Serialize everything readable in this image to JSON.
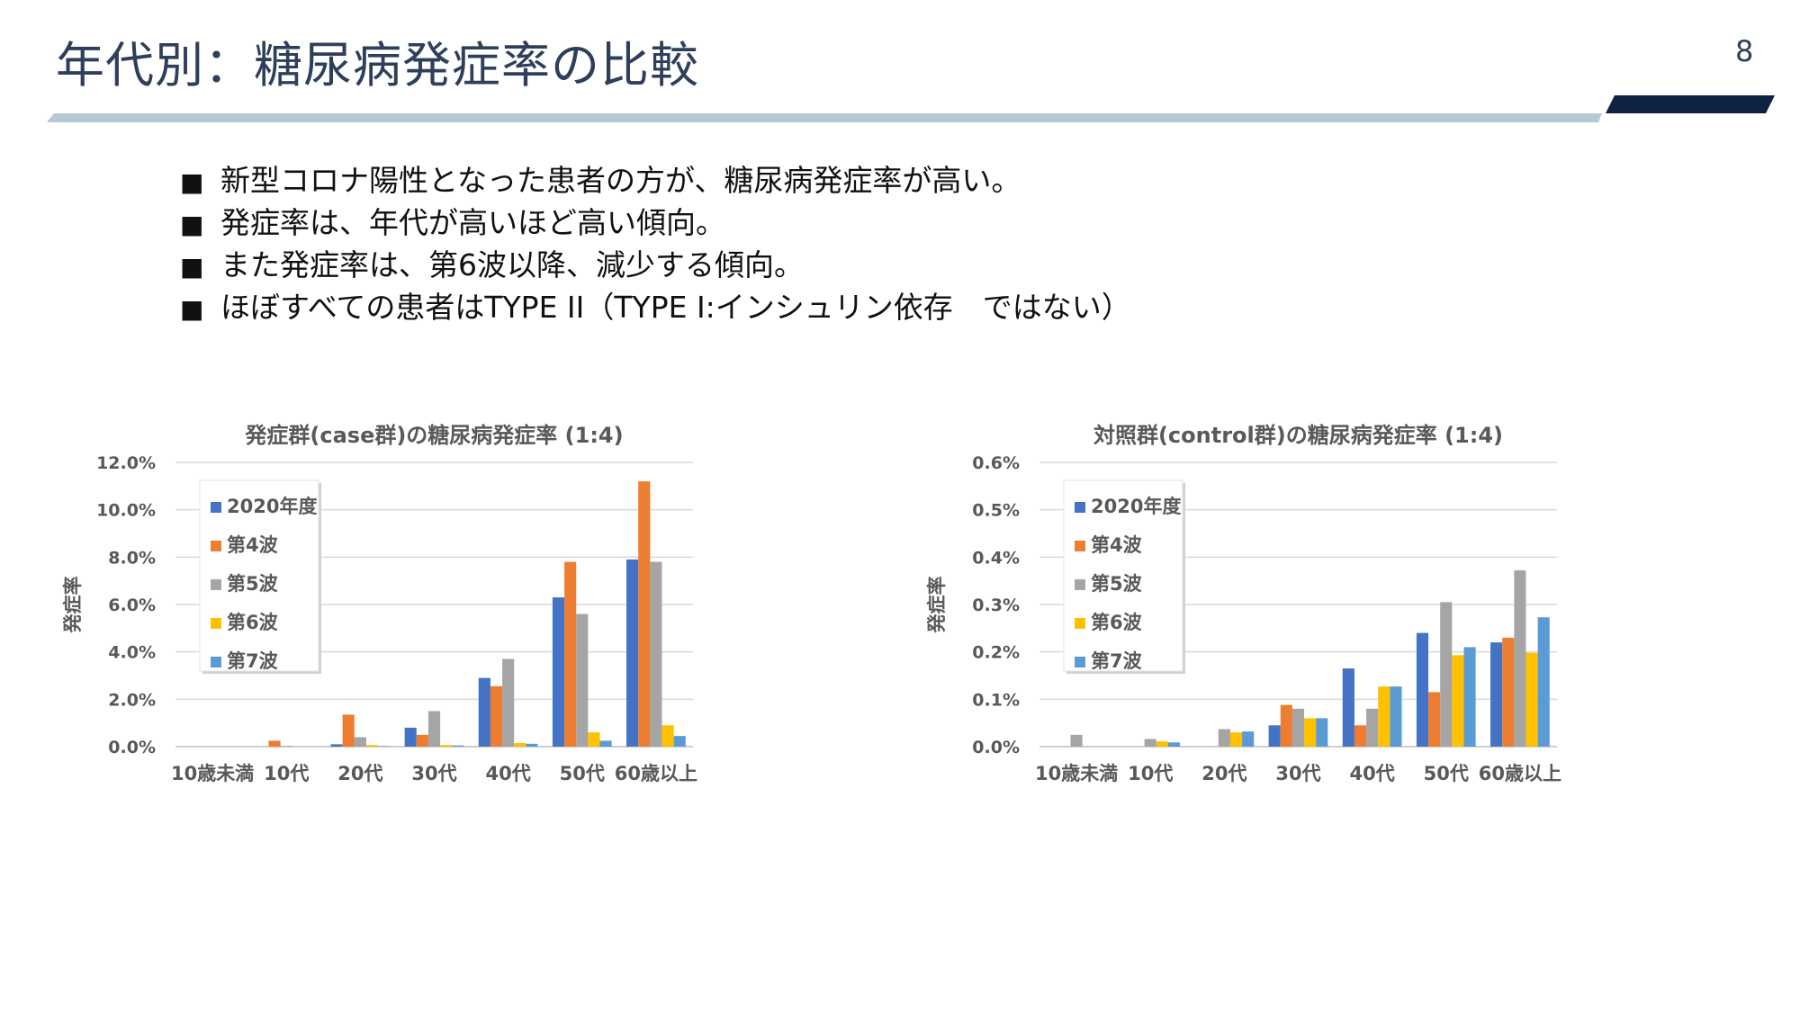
{
  "slide": {
    "title": "年代別：糖尿病発症率の比較",
    "page_number": "8"
  },
  "bullets": [
    "新型コロナ陽性となった患者の方が、糖尿病発症率が高い。",
    "発症率は、年代が高いほど高い傾向。",
    "また発症率は、第6波以降、減少する傾向。",
    "ほぼすべての患者はTYPE II（TYPE I:インシュリン依存　ではない）"
  ],
  "bullet_mark": "■",
  "colors": {
    "title": "#2e3f5c",
    "rule_light": "#b8c9d6",
    "rule_dark": "#0f2244",
    "series": [
      "#4472c4",
      "#ed7d31",
      "#a5a5a5",
      "#ffc000",
      "#5b9bd5"
    ],
    "grid": "#d9d9d9",
    "axis_text": "#595959"
  },
  "chart_data": [
    {
      "type": "bar",
      "title": "発症群(case群)の糖尿病発症率 (1:4)",
      "ylabel": "発症率",
      "xlabel": "",
      "ylim": [
        0,
        12
      ],
      "ytick_step": 2,
      "ytick_decimals": 1,
      "ytick_suffix": "%",
      "grid": true,
      "legend_position": "top-left (inside plot)",
      "categories": [
        "10歳未満",
        "10代",
        "20代",
        "30代",
        "40代",
        "50代",
        "60歳以上"
      ],
      "series": [
        {
          "name": "2020年度",
          "values": [
            0,
            0,
            0.1,
            0.8,
            2.9,
            6.3,
            7.9
          ]
        },
        {
          "name": "第4波",
          "values": [
            0,
            0.25,
            1.35,
            0.5,
            2.55,
            7.8,
            11.2
          ]
        },
        {
          "name": "第5波",
          "values": [
            0,
            0.03,
            0.4,
            1.5,
            3.7,
            5.6,
            7.8
          ]
        },
        {
          "name": "第6波",
          "values": [
            0,
            0,
            0.07,
            0.07,
            0.15,
            0.6,
            0.9
          ]
        },
        {
          "name": "第7波",
          "values": [
            0,
            0,
            0.02,
            0.05,
            0.12,
            0.25,
            0.45
          ]
        }
      ]
    },
    {
      "type": "bar",
      "title": "対照群(control群)の糖尿病発症率 (1:4)",
      "ylabel": "発症率",
      "xlabel": "",
      "ylim": [
        0,
        0.6
      ],
      "ytick_step": 0.1,
      "ytick_decimals": 1,
      "ytick_suffix": "%",
      "grid": true,
      "legend_position": "top-left (inside plot)",
      "categories": [
        "10歳未満",
        "10代",
        "20代",
        "30代",
        "40代",
        "50代",
        "60歳以上"
      ],
      "series": [
        {
          "name": "2020年度",
          "values": [
            0,
            0,
            0,
            0.045,
            0.165,
            0.24,
            0.22
          ]
        },
        {
          "name": "第4波",
          "values": [
            0,
            0,
            0,
            0.088,
            0.045,
            0.115,
            0.23
          ]
        },
        {
          "name": "第5波",
          "values": [
            0.025,
            0.016,
            0.037,
            0.08,
            0.08,
            0.305,
            0.372
          ]
        },
        {
          "name": "第6波",
          "values": [
            0,
            0.011,
            0.03,
            0.06,
            0.127,
            0.193,
            0.198
          ]
        },
        {
          "name": "第7波",
          "values": [
            0,
            0.009,
            0.032,
            0.06,
            0.127,
            0.21,
            0.273
          ]
        }
      ]
    }
  ]
}
